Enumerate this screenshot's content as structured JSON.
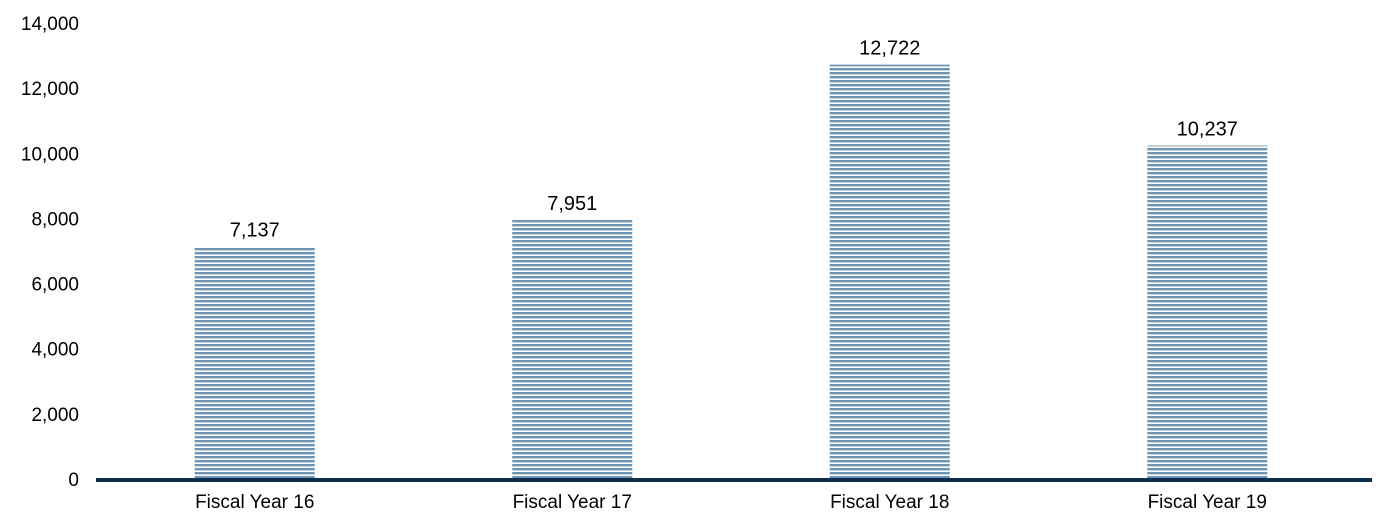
{
  "chart_data": {
    "type": "bar",
    "categories": [
      "Fiscal Year 16",
      "Fiscal Year 17",
      "Fiscal Year 18",
      "Fiscal Year 19"
    ],
    "values": [
      7137,
      7951,
      12722,
      10237
    ],
    "value_labels": [
      "7,137",
      "7,951",
      "12,722",
      "10,237"
    ],
    "title": "",
    "xlabel": "",
    "ylabel": "",
    "ylim": [
      0,
      14000
    ],
    "yticks": [
      0,
      2000,
      4000,
      6000,
      8000,
      10000,
      12000,
      14000
    ],
    "ytick_labels": [
      "0",
      "2,000",
      "4,000",
      "6,000",
      "8,000",
      "10,000",
      "12,000",
      "14,000"
    ],
    "grid": false,
    "legend": "none",
    "bar_fill": "horizontal-stripes",
    "colors": {
      "bar_stripe": "#6f95b5",
      "bar_gap": "#ffffff",
      "axis": "#0f2f4f",
      "text": "#000000"
    }
  }
}
